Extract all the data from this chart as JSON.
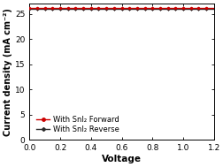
{
  "title": "",
  "xlabel": "Voltage",
  "ylabel": "Current density (mA cm⁻²)",
  "xlim": [
    0.0,
    1.2
  ],
  "ylim": [
    0.0,
    27.0
  ],
  "xticks": [
    0.0,
    0.2,
    0.4,
    0.6,
    0.8,
    1.0,
    1.2
  ],
  "yticks": [
    0,
    5,
    10,
    15,
    20,
    25
  ],
  "forward_color": "#cc0000",
  "reverse_color": "#2b2b2b",
  "forward_label": "With SnI₂ Forward",
  "reverse_label": "With SnI₂ Reverse",
  "background_color": "#ffffff",
  "tick_fontsize": 6.5,
  "label_fontsize": 7.5,
  "legend_fontsize": 6.0,
  "jsc_fwd": 26.2,
  "voc_fwd": 1.17,
  "jsc_rev": 26.0,
  "voc_rev": 1.155,
  "marker_voltages_fwd": [
    0.0,
    0.05,
    0.1,
    0.15,
    0.2,
    0.25,
    0.3,
    0.35,
    0.4,
    0.45,
    0.5,
    0.55,
    0.6,
    0.65,
    0.7,
    0.75,
    0.8,
    0.85,
    0.9,
    0.95,
    1.0,
    1.05,
    1.1,
    1.15
  ],
  "marker_voltages_rev": [
    0.0,
    0.05,
    0.1,
    0.15,
    0.2,
    0.25,
    0.3,
    0.35,
    0.4,
    0.45,
    0.5,
    0.55,
    0.6,
    0.65,
    0.7,
    0.75,
    0.8,
    0.85,
    0.9,
    0.95,
    1.0,
    1.05,
    1.1,
    1.15
  ]
}
